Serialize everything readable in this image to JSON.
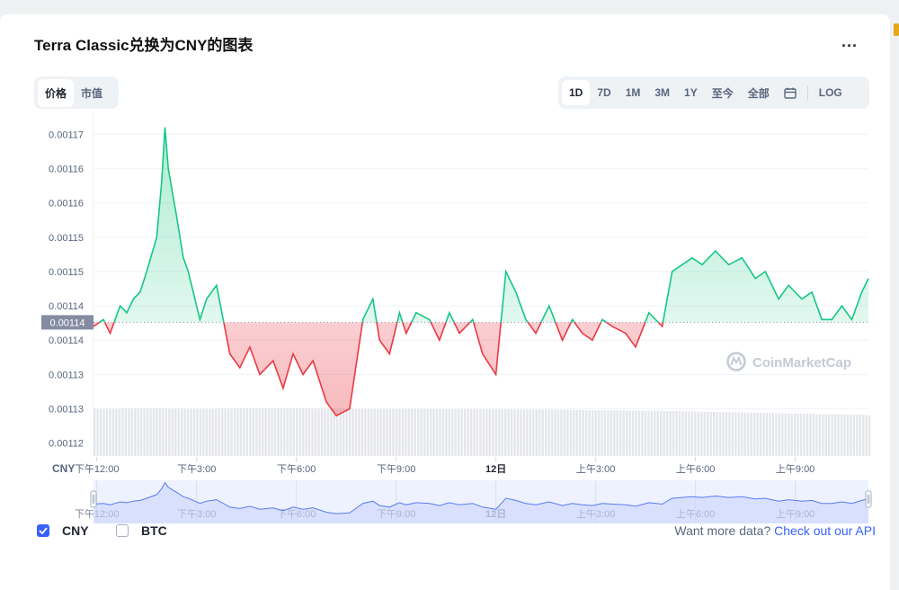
{
  "header": {
    "title": "Terra Classic兑换为CNY的图表",
    "more_label": "..."
  },
  "toggle": {
    "price": "价格",
    "market_cap": "市值"
  },
  "ranges": {
    "items": [
      "1D",
      "7D",
      "1M",
      "3M",
      "1Y",
      "至今",
      "全部"
    ],
    "active": "1D",
    "log": "LOG"
  },
  "footer": {
    "cny": "CNY",
    "btc": "BTC",
    "api_text": "Want more data?",
    "api_link": "Check out our API"
  },
  "watermark": "CoinMarketCap",
  "colors": {
    "up": "#16c784",
    "down": "#ea3943",
    "accent": "#3861fb",
    "ref_label_bg": "#858ca2"
  },
  "chart_data": {
    "type": "line",
    "title": "",
    "ylabel": "CNY",
    "y_ticks": [
      "0.00117",
      "0.00116",
      "0.00116",
      "0.00115",
      "0.00115",
      "0.00114",
      "0.00114",
      "0.00113",
      "0.00113",
      "0.00112"
    ],
    "y_tick_values": [
      0.00117,
      0.001165,
      0.00116,
      0.001155,
      0.00115,
      0.001145,
      0.00114,
      0.001135,
      0.00113,
      0.001125
    ],
    "ylim": [
      0.001123,
      0.001172
    ],
    "x_ticks": [
      "下午12:00",
      "下午3:00",
      "下午6:00",
      "下午9:00",
      "12日",
      "上午3:00",
      "上午6:00",
      "上午9:00"
    ],
    "x_tick_hours": [
      2,
      5,
      8,
      11,
      14,
      17,
      20,
      23
    ],
    "xlim_hours": [
      1.9,
      25.2
    ],
    "reference": {
      "value": 0.0011426,
      "label": "0.00114"
    },
    "grid": true,
    "series": [
      {
        "x_hours": [
          1.9,
          2.2,
          2.4,
          2.7,
          2.9,
          3.1,
          3.3,
          3.5,
          3.8,
          3.95,
          4.05,
          4.15,
          4.4,
          4.6,
          4.75,
          4.9,
          5.1,
          5.3,
          5.6,
          6.0,
          6.3,
          6.6,
          6.9,
          7.3,
          7.6,
          7.9,
          8.2,
          8.5,
          8.9,
          9.2,
          9.6,
          10.0,
          10.3,
          10.5,
          10.8,
          11.0,
          11.1,
          11.3,
          11.6,
          12.0,
          12.3,
          12.6,
          12.9,
          13.3,
          13.6,
          14.0,
          14.3,
          14.6,
          14.9,
          15.2,
          15.6,
          16.0,
          16.3,
          16.6,
          16.9,
          17.2,
          17.5,
          17.9,
          18.2,
          18.6,
          19.0,
          19.3,
          19.6,
          19.9,
          20.2,
          20.6,
          21.0,
          21.4,
          21.8,
          22.1,
          22.5,
          22.8,
          23.2,
          23.5,
          23.8,
          24.1,
          24.4,
          24.7,
          25.0,
          25.2
        ],
        "values": [
          0.001142,
          0.001143,
          0.001141,
          0.001145,
          0.001144,
          0.001146,
          0.001147,
          0.00115,
          0.001155,
          0.001163,
          0.001171,
          0.001165,
          0.001158,
          0.001152,
          0.00115,
          0.001147,
          0.001143,
          0.001146,
          0.001148,
          0.001138,
          0.001136,
          0.001139,
          0.001135,
          0.001137,
          0.001133,
          0.001138,
          0.001135,
          0.001137,
          0.001131,
          0.001129,
          0.00113,
          0.001143,
          0.001146,
          0.00114,
          0.001138,
          0.001142,
          0.001144,
          0.001141,
          0.001144,
          0.001143,
          0.00114,
          0.001144,
          0.001141,
          0.001143,
          0.001138,
          0.001135,
          0.00115,
          0.001147,
          0.001143,
          0.001141,
          0.001145,
          0.00114,
          0.001143,
          0.001141,
          0.00114,
          0.001143,
          0.001142,
          0.001141,
          0.001139,
          0.001144,
          0.001142,
          0.00115,
          0.001151,
          0.001152,
          0.001151,
          0.001153,
          0.001151,
          0.001152,
          0.001149,
          0.00115,
          0.001146,
          0.001148,
          0.001146,
          0.001147,
          0.001143,
          0.001143,
          0.001145,
          0.001143,
          0.001147,
          0.001149
        ]
      }
    ],
    "volume": {
      "description": "volume area",
      "relative_levels": [
        0.92,
        0.93,
        0.92,
        0.93,
        0.93,
        0.92,
        0.92,
        0.91,
        0.91,
        0.9,
        0.89,
        0.88,
        0.86,
        0.84,
        0.82,
        0.8
      ]
    }
  }
}
